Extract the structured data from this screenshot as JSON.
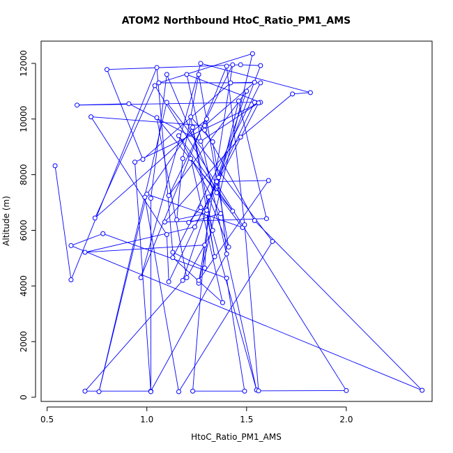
{
  "chart_data": {
    "type": "line",
    "title": "ATOM2 Northbound HtoC_Ratio_PM1_AMS",
    "xlabel": "HtoC_Ratio_PM1_AMS",
    "ylabel": "Altitude (m)",
    "xlim": [
      0.47,
      2.43
    ],
    "ylim": [
      -150,
      12800
    ],
    "xticks": [
      0.5,
      1.0,
      1.5,
      2.0
    ],
    "xtick_labels": [
      "0.5",
      "1.0",
      "1.5",
      "2.0"
    ],
    "yticks": [
      0,
      2000,
      4000,
      6000,
      8000,
      10000,
      12000
    ],
    "ytick_labels": [
      "0",
      "2000",
      "4000",
      "6000",
      "8000",
      "10000",
      "12000"
    ],
    "grid": false,
    "color": "#0000ff",
    "markers": "open-circle",
    "series": [
      {
        "x": [
          0.54,
          0.62,
          1.05,
          1.13,
          1.29,
          1.31,
          1.41,
          1.26,
          1.18,
          1.15,
          1.3,
          1.34,
          1.22,
          1.33,
          1.36,
          1.4,
          1.02,
          0.69,
          1.18,
          1.5,
          1.11,
          1.43,
          1.26,
          1.53,
          1.06,
          1.57,
          1.13,
          1.38,
          1.22,
          1.48,
          1.0,
          0.76,
          1.1,
          1.63,
          1.16,
          0.99,
          1.23,
          1.33,
          1.2,
          1.05,
          1.43,
          1.16,
          1.37,
          1.21,
          1.27,
          1.3,
          1.55,
          1.2,
          1.57,
          0.94,
          1.02,
          1.02,
          1.1,
          1.35,
          1.46,
          1.6,
          1.09,
          1.47,
          1.73,
          1.82,
          1.27,
          0.97,
          1.4,
          1.49,
          1.56,
          2.0,
          1.04,
          0.74,
          1.3,
          1.29,
          1.54,
          2.38,
          0.62,
          0.78,
          1.4,
          1.49,
          1.23,
          1.29,
          0.69,
          1.24,
          1.56,
          1.27,
          0.91,
          0.65,
          1.54,
          1.11,
          1.1,
          0.72,
          1.29,
          1.54,
          1.42,
          0.98,
          0.8,
          1.47,
          1.57,
          1.35,
          1.61,
          1.26
        ],
        "y": [
          8320,
          4220,
          11850,
          5210,
          4640,
          7200,
          5400,
          11600,
          8580,
          6380,
          6610,
          5050,
          10080,
          9180,
          7900,
          5150,
          220,
          220,
          4200,
          11000,
          7250,
          11950,
          4100,
          12350,
          11300,
          11300,
          5020,
          3400,
          8580,
          6100,
          7300,
          200,
          10600,
          5600,
          200,
          7190,
          9700,
          6000,
          4300,
          10050,
          6690,
          9400,
          6600,
          6280,
          6820,
          6720,
          260,
          11600,
          10600,
          8450,
          200,
          7150,
          11600,
          7350,
          10650,
          6420,
          6300,
          9350,
          10900,
          10950,
          12000,
          4300,
          11900,
          6200,
          230,
          240,
          11200,
          6440,
          10000,
          9600,
          6350,
          250,
          5450,
          5880,
          4280,
          220,
          220,
          5470,
          5210,
          6120,
          10580,
          9200,
          10550,
          10500,
          10600,
          4150,
          5850,
          10080,
          9760,
          11320,
          11300,
          8550,
          11780,
          11950,
          11920,
          7750,
          7790,
          4200
        ]
      }
    ]
  }
}
